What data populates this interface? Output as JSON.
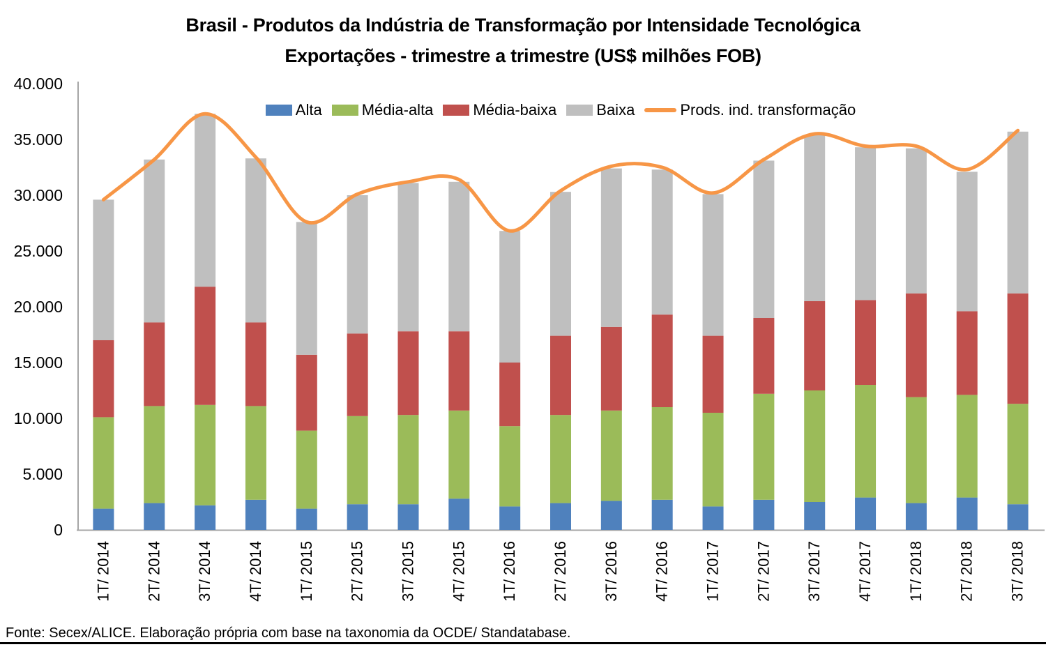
{
  "title": {
    "line1": "Brasil - Produtos da Indústria de Transformação por Intensidade Tecnológica",
    "line2": "Exportações - trimestre a trimestre (US$ milhões FOB)"
  },
  "footer": {
    "source": "Fonte: Secex/ALICE. Elaboração própria com base na taxonomia da OCDE/ Standatabase."
  },
  "chart_data": {
    "type": "bar",
    "variant": "stacked-bars-with-smoothed-line-overlay",
    "title": "Brasil - Produtos da Indústria de Transformação por Intensidade Tecnológica",
    "subtitle": "Exportações - trimestre a trimestre (US$ milhões FOB)",
    "unit": "US$ milhões FOB",
    "categories": [
      "1T/ 2014",
      "2T/ 2014",
      "3T/ 2014",
      "4T/ 2014",
      "1T/ 2015",
      "2T/ 2015",
      "3T/ 2015",
      "4T/ 2015",
      "1T/ 2016",
      "2T/ 2016",
      "3T/ 2016",
      "4T/ 2016",
      "1T/ 2017",
      "2T/ 2017",
      "3T/ 2017",
      "4T/ 2017",
      "1T/ 2018",
      "2T/ 2018",
      "3T/ 2018"
    ],
    "series": [
      {
        "name": "Alta",
        "type": "bar",
        "color": "#4F81BD",
        "values": [
          1900,
          2400,
          2200,
          2700,
          1900,
          2300,
          2300,
          2800,
          2100,
          2400,
          2600,
          2700,
          2100,
          2700,
          2500,
          2900,
          2400,
          2900,
          2300
        ]
      },
      {
        "name": "Média-alta",
        "type": "bar",
        "color": "#9BBB59",
        "values": [
          8200,
          8700,
          9000,
          8400,
          7000,
          7900,
          8000,
          7900,
          7200,
          7900,
          8100,
          8300,
          8400,
          9500,
          10000,
          10100,
          9500,
          9200,
          9000
        ]
      },
      {
        "name": "Média-baixa",
        "type": "bar",
        "color": "#C0504D",
        "values": [
          6900,
          7500,
          10600,
          7500,
          6800,
          7400,
          7500,
          7100,
          5700,
          7100,
          7500,
          8300,
          6900,
          6800,
          8000,
          7600,
          9300,
          7500,
          9900
        ]
      },
      {
        "name": "Baixa",
        "type": "bar",
        "color": "#BFBFBF",
        "values": [
          12600,
          14600,
          15500,
          14700,
          11900,
          12400,
          13300,
          13400,
          11800,
          12900,
          14200,
          13000,
          12700,
          14100,
          14900,
          13700,
          13000,
          12500,
          14500
        ]
      },
      {
        "name": "Prods. ind. transformação",
        "type": "line",
        "color": "#F79646",
        "values": [
          29600,
          33200,
          37300,
          33400,
          27600,
          30100,
          31200,
          31400,
          26800,
          30400,
          32600,
          32500,
          30200,
          33200,
          35500,
          34400,
          34400,
          32300,
          35800
        ]
      }
    ],
    "stacked_totals": [
      29600,
      33200,
      37300,
      33300,
      27600,
      30000,
      31100,
      31200,
      26800,
      30300,
      32400,
      32300,
      30100,
      33100,
      35400,
      34300,
      34200,
      32100,
      35700
    ],
    "ylim": [
      0,
      40000
    ],
    "ytick_step": 5000,
    "yticks": [
      {
        "value": 0,
        "label": "0"
      },
      {
        "value": 5000,
        "label": "5.000"
      },
      {
        "value": 10000,
        "label": "10.000"
      },
      {
        "value": 15000,
        "label": "15.000"
      },
      {
        "value": 20000,
        "label": "20.000"
      },
      {
        "value": 25000,
        "label": "25.000"
      },
      {
        "value": 30000,
        "label": "30.000"
      },
      {
        "value": 35000,
        "label": "35.000"
      },
      {
        "value": 40000,
        "label": "40.000"
      }
    ],
    "grid": false,
    "legend_position": "top-center",
    "axis_color": "#A6A6A6",
    "text_color": "#000000"
  }
}
